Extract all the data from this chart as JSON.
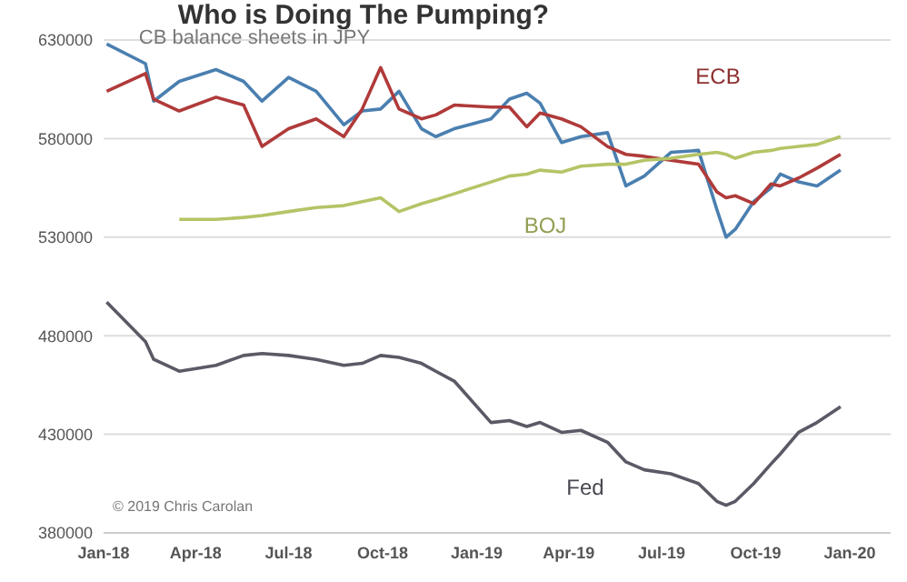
{
  "chart_data": {
    "type": "line",
    "title": "Who is Doing The Pumping?",
    "subtitle": "CB balance sheets in JPY",
    "x": [
      "2018-01-04",
      "2018-02-11",
      "2018-02-19",
      "2018-03-16",
      "2018-04-21",
      "2018-05-18",
      "2018-06-05",
      "2018-07-01",
      "2018-07-28",
      "2018-08-24",
      "2018-09-11",
      "2018-09-29",
      "2018-10-17",
      "2018-11-08",
      "2018-11-22",
      "2018-12-10",
      "2019-01-15",
      "2019-02-02",
      "2019-02-19",
      "2019-03-04",
      "2019-03-25",
      "2019-04-13",
      "2019-05-09",
      "2019-05-27",
      "2019-06-14",
      "2019-07-10",
      "2019-08-06",
      "2019-08-24",
      "2019-09-02",
      "2019-09-11",
      "2019-09-29",
      "2019-10-16",
      "2019-10-25",
      "2019-11-12",
      "2019-11-30",
      "2019-12-23"
    ],
    "series": [
      {
        "color": "#4a7fb0",
        "values": [
          628000,
          618000,
          599000,
          609000,
          615000,
          609000,
          599000,
          611000,
          604000,
          587000,
          594000,
          595000,
          604000,
          585000,
          581000,
          585000,
          590000,
          600000,
          603000,
          598000,
          578000,
          581000,
          583000,
          556000,
          561000,
          573000,
          574000,
          544000,
          530000,
          534000,
          548000,
          555000,
          562000,
          558000,
          556000,
          564000
        ]
      },
      {
        "name": "ECB",
        "color": "#b03a3a",
        "values": [
          604000,
          613000,
          600000,
          594000,
          601000,
          597000,
          576000,
          585000,
          590000,
          581000,
          595000,
          616000,
          595000,
          590000,
          592000,
          597000,
          596000,
          596000,
          586000,
          593000,
          590000,
          586000,
          576000,
          572000,
          571000,
          569000,
          567000,
          553000,
          550000,
          551000,
          547000,
          557000,
          556000,
          560000,
          565000,
          572000
        ]
      },
      {
        "name": "BOJ",
        "color": "#b5c466",
        "values": [
          null,
          null,
          null,
          539000,
          539000,
          540000,
          541000,
          543000,
          545000,
          546000,
          548000,
          550000,
          543000,
          547000,
          549000,
          552000,
          558000,
          561000,
          562000,
          564000,
          563000,
          566000,
          567000,
          567000,
          569000,
          570000,
          572000,
          573000,
          572000,
          570000,
          573000,
          574000,
          575000,
          576000,
          577000,
          581000
        ]
      },
      {
        "name": "Fed",
        "color": "#5a5a66",
        "values": [
          497000,
          477000,
          468000,
          462000,
          465000,
          470000,
          471000,
          470000,
          468000,
          465000,
          466000,
          470000,
          469000,
          466000,
          462000,
          457000,
          436000,
          437000,
          434000,
          436000,
          431000,
          432000,
          426000,
          416000,
          412000,
          410000,
          405000,
          396000,
          394000,
          396000,
          405000,
          415000,
          420000,
          431000,
          436000,
          444000
        ]
      }
    ],
    "xlim": [
      "2018-01-01",
      "2020-02-10"
    ],
    "xticks": [
      {
        "value": "2018-01-01",
        "label": "Jan-18"
      },
      {
        "value": "2018-04-01",
        "label": "Apr-18"
      },
      {
        "value": "2018-07-01",
        "label": "Jul-18"
      },
      {
        "value": "2018-10-01",
        "label": "Oct-18"
      },
      {
        "value": "2019-01-01",
        "label": "Jan-19"
      },
      {
        "value": "2019-04-01",
        "label": "Apr-19"
      },
      {
        "value": "2019-07-01",
        "label": "Jul-19"
      },
      {
        "value": "2019-10-01",
        "label": "Oct-19"
      },
      {
        "value": "2020-01-01",
        "label": "Jan-20"
      }
    ],
    "ylim": [
      380000,
      630000
    ],
    "yticks": [
      380000,
      430000,
      480000,
      530000,
      580000,
      630000
    ],
    "grid": "y",
    "annotations": [
      "© 2019 Chris Carolan"
    ]
  }
}
